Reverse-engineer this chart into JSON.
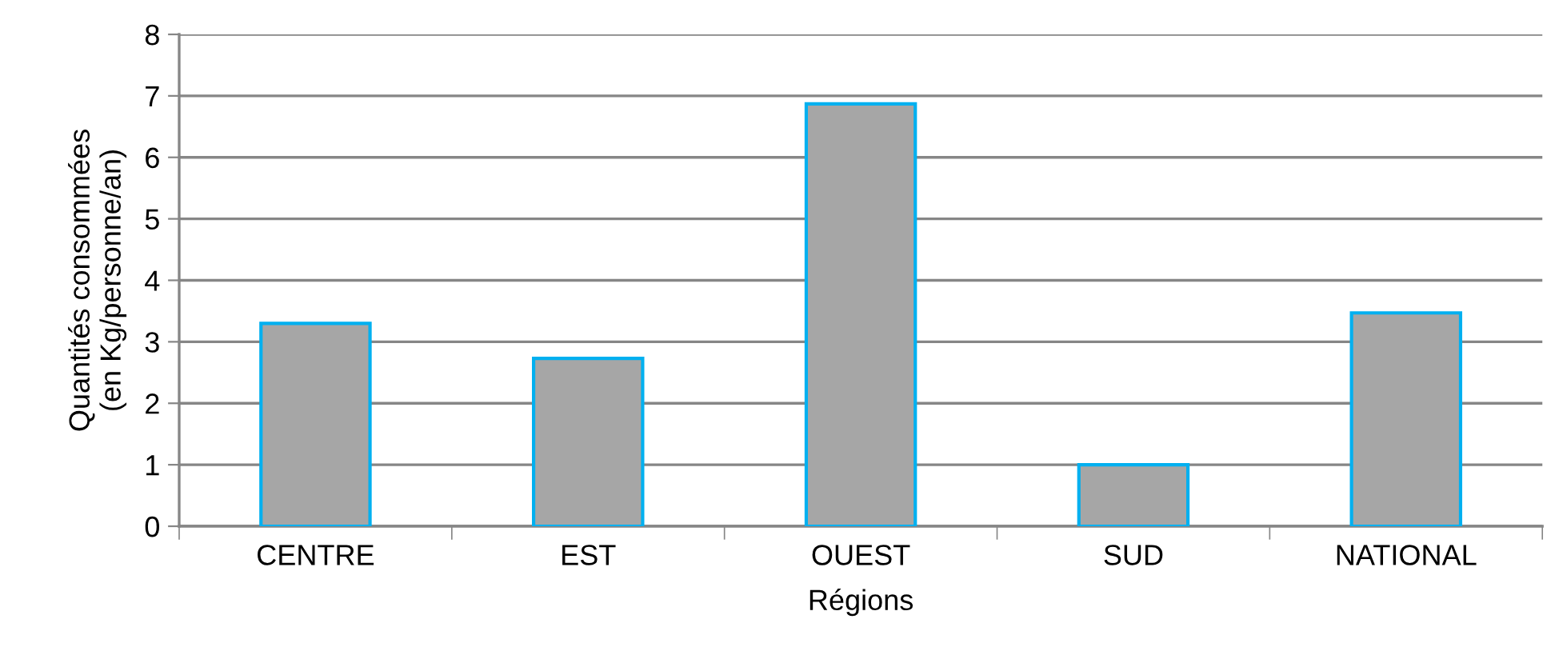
{
  "chart_data": {
    "type": "bar",
    "xlabel": "Régions",
    "ylabel": "Quantités consommées\n(en Kg/personne/an)",
    "categories": [
      "CENTRE",
      "EST",
      "OUEST",
      "SUD",
      "NATIONAL"
    ],
    "values": [
      3.3,
      2.73,
      6.87,
      1.0,
      3.47
    ],
    "color": "#a6a6a6",
    "ylim": [
      0,
      8
    ],
    "yticks": [
      0,
      1,
      2,
      3,
      4,
      5,
      6,
      7,
      8
    ],
    "grid": "y",
    "legend": false
  }
}
